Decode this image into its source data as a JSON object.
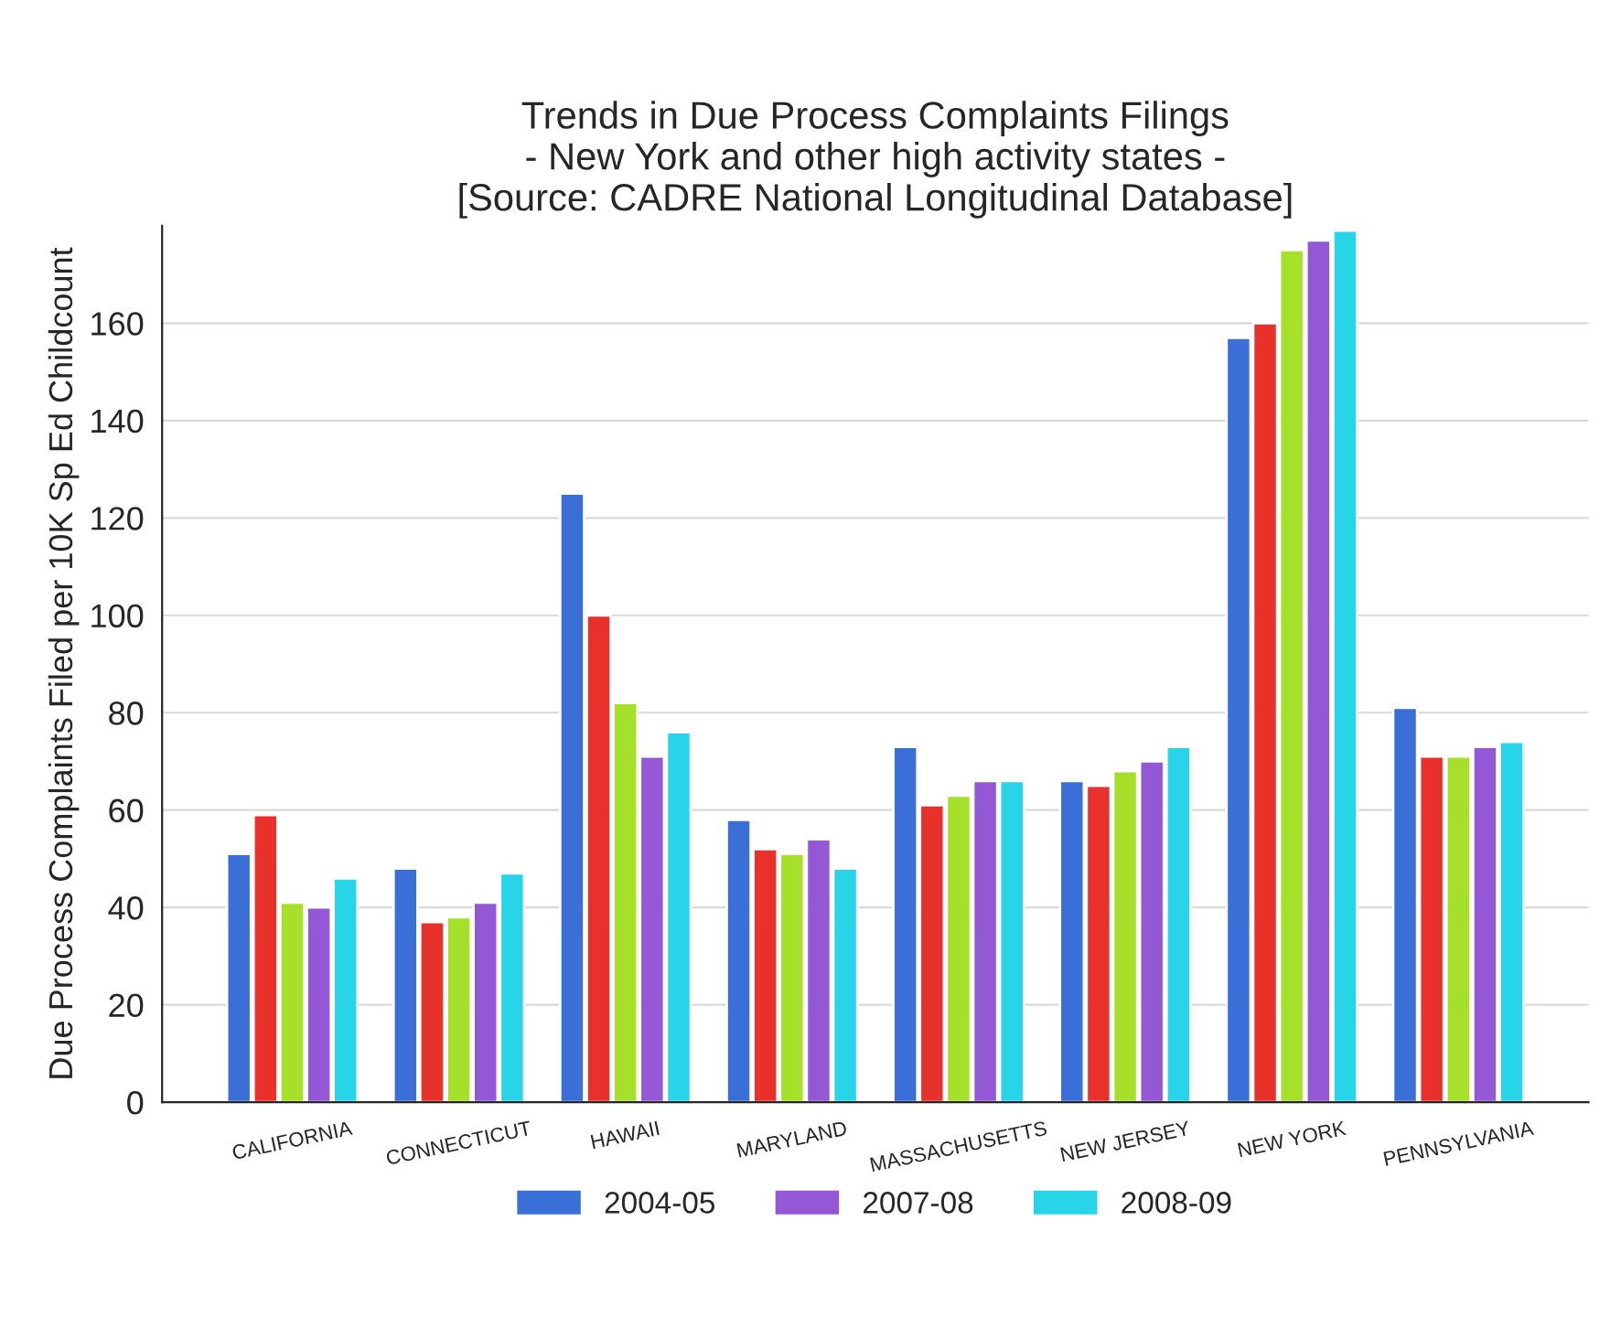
{
  "chart_data": {
    "type": "bar",
    "title": "Trends in Due Process Complaints Filings\n- New York and other high activity states -\n[Source: CADRE National Longitudinal Database]",
    "ylabel": "Due Process Complaints Filed per 10K Sp Ed Childcount",
    "categories": [
      "CALIFORNIA",
      "CONNECTICUT",
      "HAWAII",
      "MARYLAND",
      "MASSACHUSETTS",
      "NEW JERSEY",
      "NEW YORK",
      "PENNSYLVANIA"
    ],
    "series": [
      {
        "name": "2004-05",
        "color": "#3a6fd8",
        "values": [
          51,
          48,
          125,
          58,
          73,
          66,
          157,
          81
        ]
      },
      {
        "color": "#e8312b",
        "values": [
          59,
          37,
          100,
          52,
          61,
          65,
          160,
          71
        ]
      },
      {
        "color": "#a6e02a",
        "values": [
          41,
          38,
          82,
          51,
          63,
          68,
          175,
          71
        ]
      },
      {
        "name": "2007-08",
        "color": "#9457d6",
        "values": [
          40,
          41,
          71,
          54,
          66,
          70,
          177,
          73
        ]
      },
      {
        "name": "2008-09",
        "color": "#28d4e8",
        "values": [
          46,
          47,
          76,
          48,
          66,
          73,
          179,
          74
        ]
      }
    ],
    "ylim": [
      0,
      180
    ],
    "yticks": [
      0,
      20,
      40,
      60,
      80,
      100,
      120,
      140,
      160
    ],
    "grid": "y",
    "legend": "bottom"
  }
}
